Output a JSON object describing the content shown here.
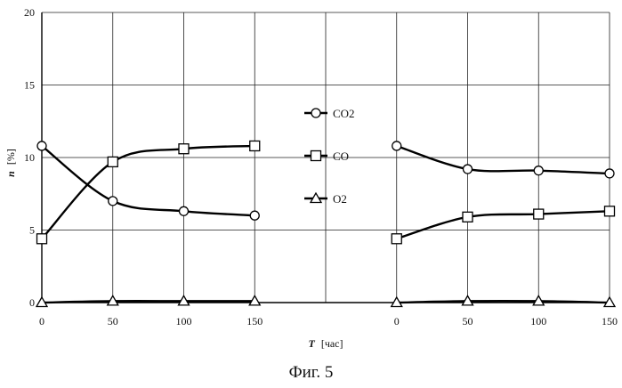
{
  "chart_data": {
    "type": "line",
    "ylabel_var": "n",
    "ylabel_unit": "[%]",
    "xlabel_var": "T",
    "xlabel_unit": "[час]",
    "ylim": [
      0,
      20
    ],
    "yticks": [
      0,
      5,
      10,
      15,
      20
    ],
    "x_categories": [
      "0",
      "50",
      "100",
      "150",
      "",
      "0",
      "50",
      "100",
      "150"
    ],
    "grid": true,
    "legend_position": "center",
    "groups": [
      {
        "x": [
          0,
          50,
          100,
          150
        ],
        "series": [
          {
            "name": "CO2",
            "marker": "circle",
            "values": [
              10.8,
              7.0,
              6.3,
              6.0
            ]
          },
          {
            "name": "CO",
            "marker": "square",
            "values": [
              4.4,
              9.7,
              10.6,
              10.8
            ]
          },
          {
            "name": "O2",
            "marker": "triangle",
            "values": [
              0.0,
              0.1,
              0.1,
              0.1
            ]
          }
        ]
      },
      {
        "x": [
          0,
          50,
          100,
          150
        ],
        "series": [
          {
            "name": "CO2",
            "marker": "circle",
            "values": [
              10.8,
              9.2,
              9.1,
              8.9
            ]
          },
          {
            "name": "CO",
            "marker": "square",
            "values": [
              4.4,
              5.9,
              6.1,
              6.3
            ]
          },
          {
            "name": "O2",
            "marker": "triangle",
            "values": [
              0.0,
              0.1,
              0.1,
              0.0
            ]
          }
        ]
      }
    ]
  },
  "caption": "Фиг. 5"
}
